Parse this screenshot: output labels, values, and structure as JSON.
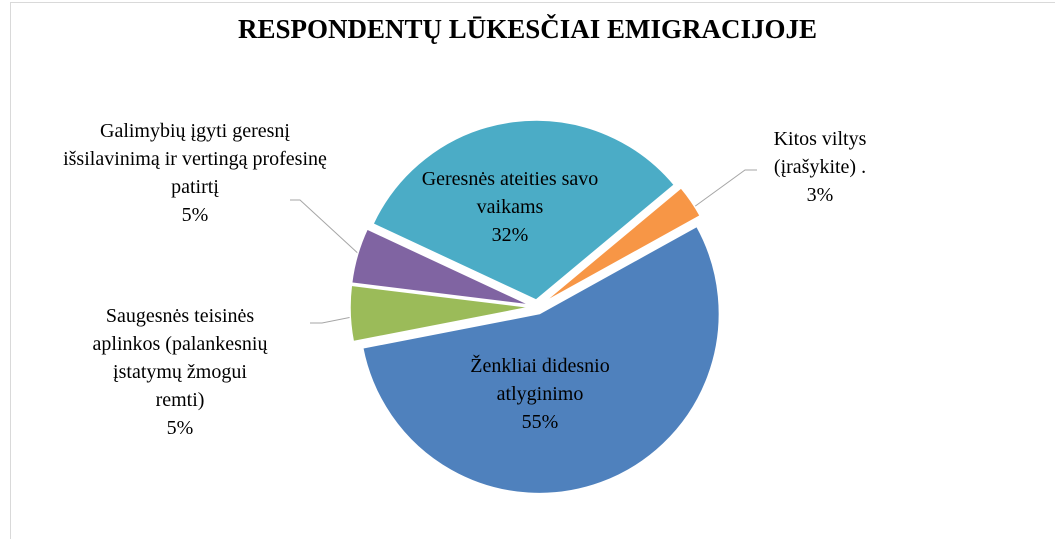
{
  "chart_data": {
    "type": "pie",
    "title": "RESPONDENTŲ LŪKESČIAI EMIGRACIJOJE",
    "categories": [
      "Ženkliai didesnio atlyginimo",
      "Saugesnės teisinės aplinkos (palankesnių įstatymų žmogui remti)",
      "Galimybių įgyti geresnį išsilavinimą ir vertingą profesinę patirtį",
      "Geresnės ateities savo vaikams",
      "Kitos viltys (įrašykite) ."
    ],
    "values": [
      55,
      5,
      5,
      32,
      3
    ],
    "value_labels": [
      "55%",
      "5%",
      "5%",
      "32%",
      "3%"
    ],
    "colors": [
      "#4f81bd",
      "#9bbb59",
      "#8064a2",
      "#4bacc6",
      "#f79646"
    ]
  }
}
